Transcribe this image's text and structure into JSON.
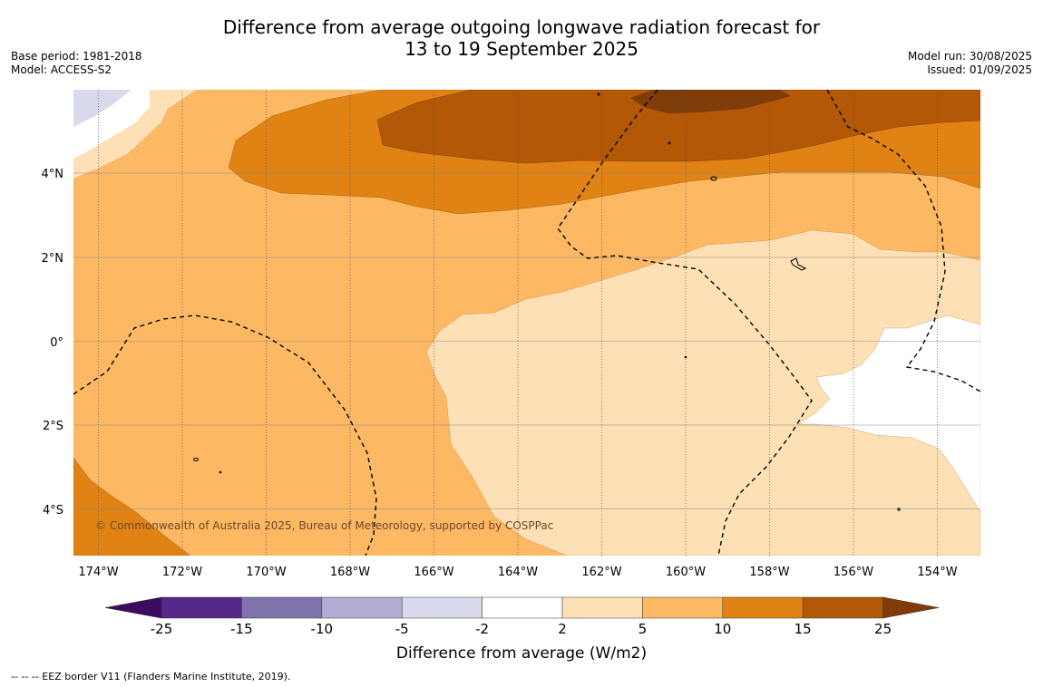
{
  "title": {
    "line1": "Difference from average outgoing longwave radiation forecast for",
    "line2": "13 to 19 September 2025"
  },
  "meta_left": {
    "base_period": "Base period: 1981-2018",
    "model": "Model: ACCESS-S2"
  },
  "meta_right": {
    "model_run": "Model run: 30/08/2025",
    "issued": "Issued: 01/09/2025"
  },
  "map": {
    "longitude_labels": [
      "174°W",
      "172°W",
      "170°W",
      "168°W",
      "166°W",
      "164°W",
      "162°W",
      "160°W",
      "158°W",
      "156°W",
      "154°W"
    ],
    "latitude_labels": [
      "4°N",
      "2°N",
      "0°",
      "2°S",
      "4°S"
    ],
    "copyright": "© Commonwealth of Australia 2025, Bureau of Meteorology, supported by COSPPac"
  },
  "colorbar": {
    "ticks": [
      "-25",
      "-15",
      "-10",
      "-5",
      "-2",
      "2",
      "5",
      "10",
      "15",
      "25"
    ],
    "colors": [
      "#3c0a5e",
      "#542788",
      "#8073ac",
      "#b2abd2",
      "#d8daeb",
      "#ffffff",
      "#fee0b6",
      "#fdb863",
      "#e08214",
      "#b35806",
      "#7f3b08"
    ],
    "title": "Difference from average (W/m2)"
  },
  "footnote": "--  --  -- EEZ border V11 (Flanders Marine Institute, 2019)."
}
